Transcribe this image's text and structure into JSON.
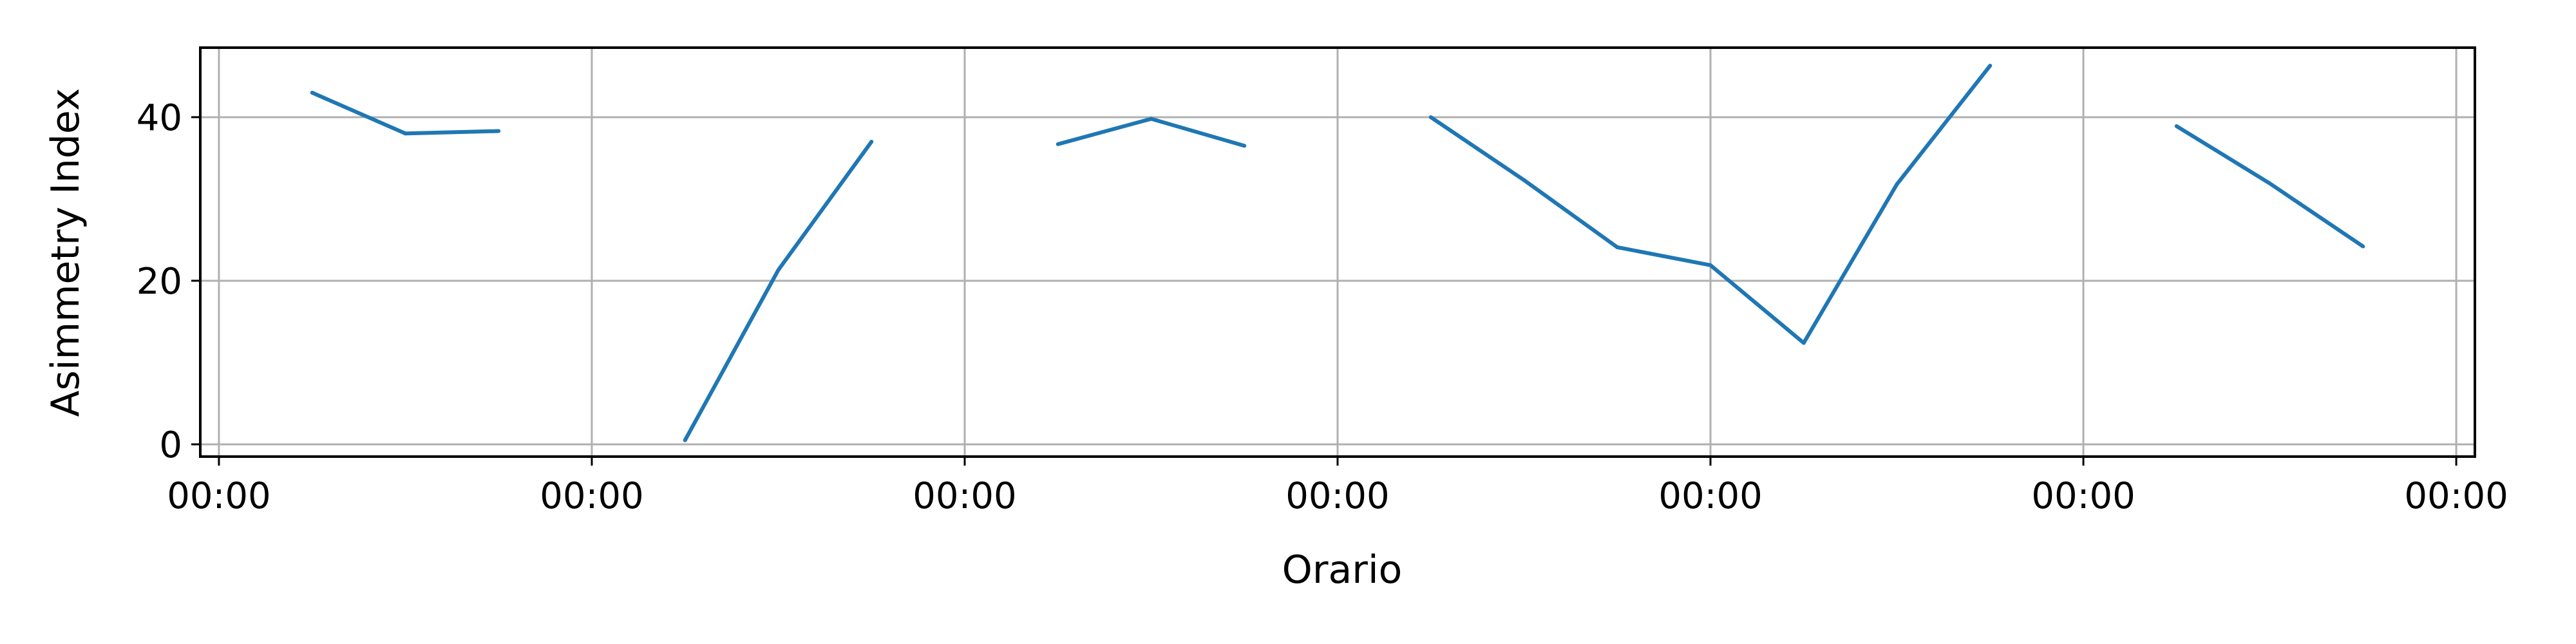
{
  "chart_data": {
    "type": "line",
    "title": "",
    "xlabel": "Orario",
    "ylabel": "Asimmetry Index",
    "grid": true,
    "legend": "none",
    "ylim": [
      -1.5,
      48.5
    ],
    "xlim": [
      -0.05,
      6.05
    ],
    "yticks": [
      {
        "value": 0,
        "label": "0"
      },
      {
        "value": 20,
        "label": "20"
      },
      {
        "value": 40,
        "label": "40"
      }
    ],
    "xticks": [
      {
        "value": 0,
        "label": "00:00"
      },
      {
        "value": 1,
        "label": "00:00"
      },
      {
        "value": 2,
        "label": "00:00"
      },
      {
        "value": 3,
        "label": "00:00"
      },
      {
        "value": 4,
        "label": "00:00"
      },
      {
        "value": 5,
        "label": "00:00"
      },
      {
        "value": 6,
        "label": "00:00"
      }
    ],
    "series": [
      {
        "color": "#1f77b4",
        "segments": [
          [
            {
              "x": 0.25,
              "y": 43.0
            },
            {
              "x": 0.5,
              "y": 38.0
            },
            {
              "x": 0.75,
              "y": 38.3
            }
          ],
          [
            {
              "x": 1.25,
              "y": 0.5
            },
            {
              "x": 1.5,
              "y": 21.3
            },
            {
              "x": 1.75,
              "y": 37.0
            }
          ],
          [
            {
              "x": 2.25,
              "y": 36.7
            },
            {
              "x": 2.5,
              "y": 39.8
            },
            {
              "x": 2.75,
              "y": 36.5
            }
          ],
          [
            {
              "x": 3.25,
              "y": 40.0
            },
            {
              "x": 3.5,
              "y": 32.3
            },
            {
              "x": 3.75,
              "y": 24.1
            },
            {
              "x": 4.0,
              "y": 21.9
            },
            {
              "x": 4.25,
              "y": 12.4
            },
            {
              "x": 4.5,
              "y": 31.8
            },
            {
              "x": 4.75,
              "y": 46.3
            }
          ],
          [
            {
              "x": 5.25,
              "y": 38.9
            },
            {
              "x": 5.5,
              "y": 31.9
            },
            {
              "x": 5.75,
              "y": 24.2
            }
          ]
        ]
      }
    ]
  }
}
